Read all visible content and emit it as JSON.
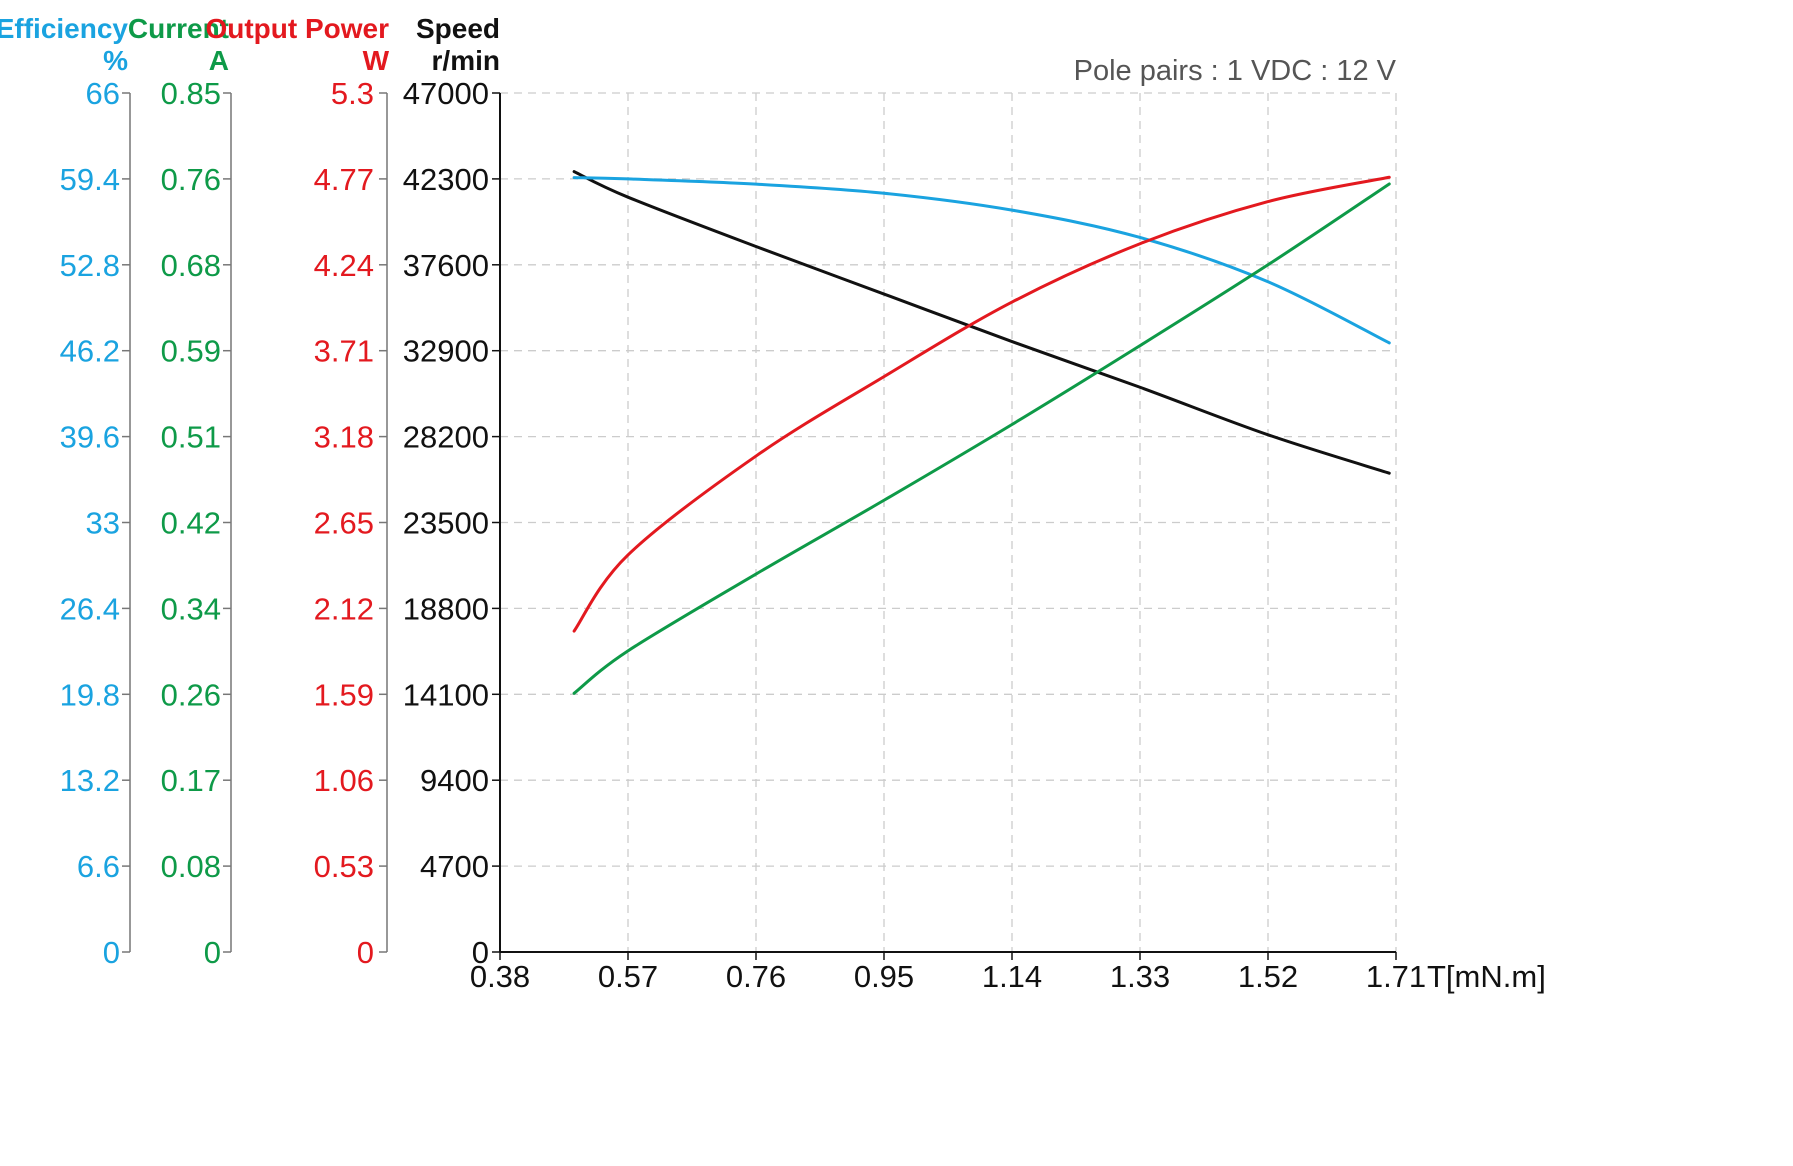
{
  "chart_data": {
    "type": "line",
    "note": "Pole pairs : 1   VDC : 12 V",
    "xlabel": "T[mN.m]",
    "x_ticks": [
      "0.38",
      "0.57",
      "0.76",
      "0.95",
      "1.14",
      "1.33",
      "1.52",
      "1.71"
    ],
    "xlim": [
      0.38,
      1.71
    ],
    "grid": true,
    "colors": {
      "efficiency": "#1aa3e0",
      "current": "#0e9a48",
      "power": "#e3191f",
      "speed": "#111111"
    },
    "axes": [
      {
        "key": "efficiency",
        "title": "Efficiency",
        "unit": "%",
        "ylim": [
          0,
          66
        ],
        "ticks": [
          "0",
          "6.6",
          "13.2",
          "19.8",
          "26.4",
          "33",
          "39.6",
          "46.2",
          "52.8",
          "59.4",
          "66"
        ]
      },
      {
        "key": "current",
        "title": "Current",
        "unit": "A",
        "ylim": [
          0,
          0.85
        ],
        "ticks": [
          "0",
          "0.08",
          "0.17",
          "0.26",
          "0.34",
          "0.42",
          "0.51",
          "0.59",
          "0.68",
          "0.76",
          "0.85"
        ]
      },
      {
        "key": "power",
        "title": "Output Power",
        "unit": "W",
        "ylim": [
          0,
          5.3
        ],
        "ticks": [
          "0",
          "0.53",
          "1.06",
          "1.59",
          "2.12",
          "2.65",
          "3.18",
          "3.71",
          "4.24",
          "4.77",
          "5.3"
        ]
      },
      {
        "key": "speed",
        "title": "Speed",
        "unit": "r/min",
        "ylim": [
          0,
          47000
        ],
        "ticks": [
          "0",
          "4700",
          "9400",
          "14100",
          "18800",
          "23500",
          "28200",
          "32900",
          "37600",
          "42300",
          "47000"
        ]
      }
    ],
    "series": [
      {
        "axis": "speed",
        "x": [
          0.49,
          0.57,
          0.76,
          0.95,
          1.14,
          1.33,
          1.52,
          1.7
        ],
        "y": [
          42700,
          41300,
          38600,
          36000,
          33400,
          30900,
          28300,
          26200
        ]
      },
      {
        "axis": "efficiency",
        "x": [
          0.49,
          0.57,
          0.76,
          0.95,
          1.14,
          1.33,
          1.52,
          1.7
        ],
        "y": [
          59.5,
          59.4,
          59.0,
          58.3,
          57.0,
          54.9,
          51.5,
          46.8
        ]
      },
      {
        "axis": "current",
        "x": [
          0.49,
          0.57,
          0.76,
          0.95,
          1.14,
          1.33,
          1.52,
          1.7
        ],
        "y": [
          0.256,
          0.298,
          0.374,
          0.447,
          0.522,
          0.6,
          0.68,
          0.76
        ]
      },
      {
        "axis": "power",
        "x": [
          0.49,
          0.57,
          0.76,
          0.95,
          1.14,
          1.33,
          1.52,
          1.7
        ],
        "y": [
          1.98,
          2.45,
          3.06,
          3.55,
          4.01,
          4.37,
          4.63,
          4.78
        ]
      }
    ]
  }
}
